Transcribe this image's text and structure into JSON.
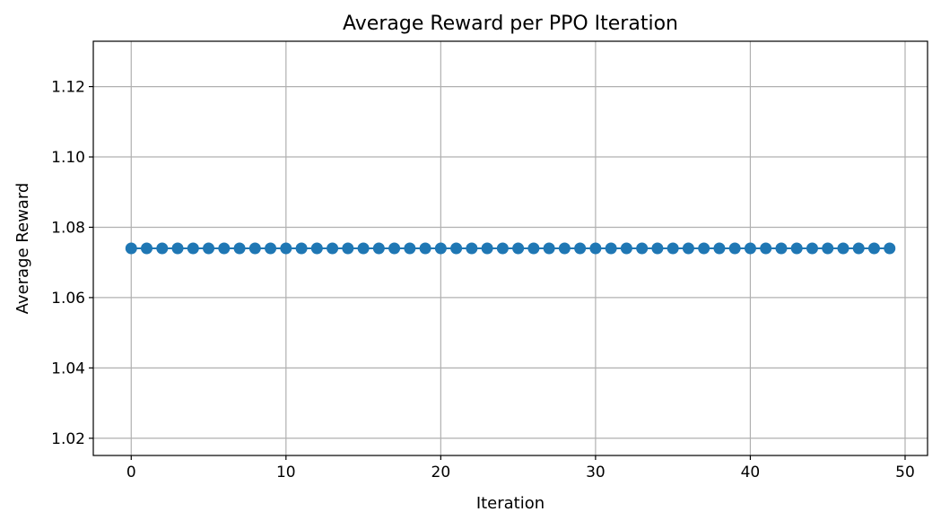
{
  "chart_data": {
    "type": "line",
    "title": "Average Reward per PPO Iteration",
    "xlabel": "Iteration",
    "ylabel": "Average Reward",
    "xlim": [
      -2.45,
      51.45
    ],
    "ylim": [
      1.0151,
      1.1329
    ],
    "xticks": [
      0,
      10,
      20,
      30,
      40,
      50
    ],
    "xtick_labels": [
      "0",
      "10",
      "20",
      "30",
      "40",
      "50"
    ],
    "yticks": [
      1.02,
      1.04,
      1.06,
      1.08,
      1.1,
      1.12
    ],
    "ytick_labels": [
      "1.02",
      "1.04",
      "1.06",
      "1.08",
      "1.10",
      "1.12"
    ],
    "grid": true,
    "marker": "circle",
    "series": [
      {
        "color": "#1f77b4",
        "x": [
          0,
          1,
          2,
          3,
          4,
          5,
          6,
          7,
          8,
          9,
          10,
          11,
          12,
          13,
          14,
          15,
          16,
          17,
          18,
          19,
          20,
          21,
          22,
          23,
          24,
          25,
          26,
          27,
          28,
          29,
          30,
          31,
          32,
          33,
          34,
          35,
          36,
          37,
          38,
          39,
          40,
          41,
          42,
          43,
          44,
          45,
          46,
          47,
          48,
          49
        ],
        "y": [
          1.074,
          1.074,
          1.074,
          1.074,
          1.074,
          1.074,
          1.074,
          1.074,
          1.074,
          1.074,
          1.074,
          1.074,
          1.074,
          1.074,
          1.074,
          1.074,
          1.074,
          1.074,
          1.074,
          1.074,
          1.074,
          1.074,
          1.074,
          1.074,
          1.074,
          1.074,
          1.074,
          1.074,
          1.074,
          1.074,
          1.074,
          1.074,
          1.074,
          1.074,
          1.074,
          1.074,
          1.074,
          1.074,
          1.074,
          1.074,
          1.074,
          1.074,
          1.074,
          1.074,
          1.074,
          1.074,
          1.074,
          1.074,
          1.074,
          1.074
        ]
      }
    ]
  }
}
